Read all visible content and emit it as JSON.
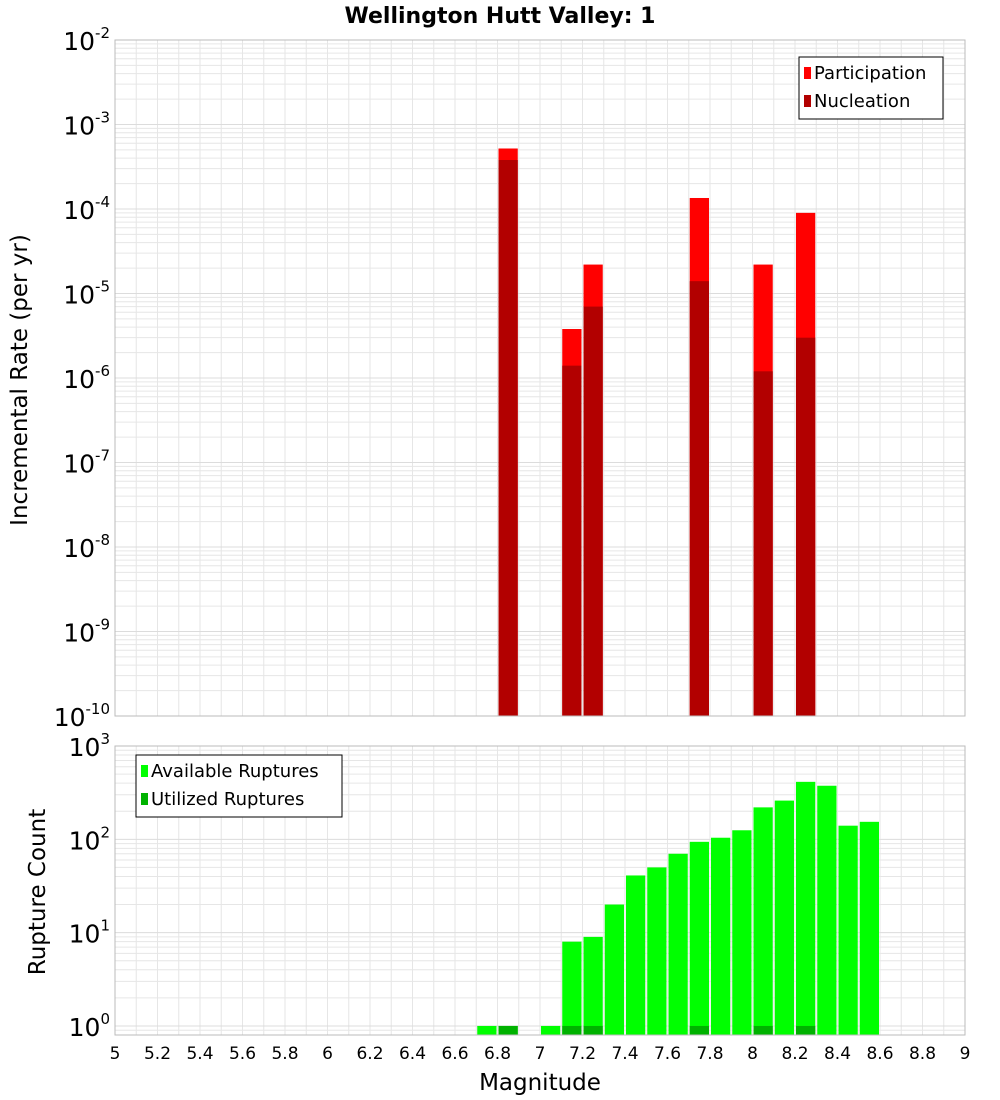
{
  "title": "Wellington Hutt Valley: 1",
  "xlabel": "Magnitude",
  "colors": {
    "participation": "#ff0000",
    "nucleation": "#b20000",
    "available": "#00ff00",
    "utilized": "#00b200",
    "grid": "#e6e6e6",
    "frame": "#bbbbbb"
  },
  "chart_data": [
    {
      "type": "bar",
      "panel": "rates",
      "ylabel": "Incremental Rate (per yr)",
      "yscale": "log",
      "ylim": [
        1e-10,
        0.01
      ],
      "xlim": [
        5,
        9
      ],
      "bin_width": 0.1,
      "grid": true,
      "legend_position": "top-right",
      "y_ticks": [
        {
          "base": "10",
          "exp": "-10",
          "value": 1e-10
        },
        {
          "base": "10",
          "exp": "-9",
          "value": 1e-09
        },
        {
          "base": "10",
          "exp": "-8",
          "value": 1e-08
        },
        {
          "base": "10",
          "exp": "-7",
          "value": 1e-07
        },
        {
          "base": "10",
          "exp": "-6",
          "value": 1e-06
        },
        {
          "base": "10",
          "exp": "-5",
          "value": 1e-05
        },
        {
          "base": "10",
          "exp": "-4",
          "value": 0.0001
        },
        {
          "base": "10",
          "exp": "-3",
          "value": 0.001
        },
        {
          "base": "10",
          "exp": "-2",
          "value": 0.01
        }
      ],
      "series": [
        {
          "name": "Participation",
          "color_key": "participation",
          "x": [
            6.85,
            7.15,
            7.25,
            7.75,
            8.05,
            8.25
          ],
          "values": [
            0.00052,
            3.8e-06,
            2.2e-05,
            0.000135,
            2.2e-05,
            9e-05
          ]
        },
        {
          "name": "Nucleation",
          "color_key": "nucleation",
          "x": [
            6.85,
            7.15,
            7.25,
            7.75,
            8.05,
            8.25
          ],
          "values": [
            0.00038,
            1.4e-06,
            7e-06,
            1.4e-05,
            1.2e-06,
            3e-06
          ]
        }
      ]
    },
    {
      "type": "bar",
      "panel": "counts",
      "ylabel": "Rupture Count",
      "yscale": "log",
      "ylim": [
        0.8,
        1000
      ],
      "xlim": [
        5,
        9
      ],
      "bin_width": 0.1,
      "grid": true,
      "legend_position": "top-left",
      "y_ticks": [
        {
          "base": "10",
          "exp": "0",
          "value": 1
        },
        {
          "base": "10",
          "exp": "1",
          "value": 10
        },
        {
          "base": "10",
          "exp": "2",
          "value": 100
        },
        {
          "base": "10",
          "exp": "3",
          "value": 1000
        }
      ],
      "series": [
        {
          "name": "Available Ruptures",
          "color_key": "available",
          "x": [
            6.75,
            6.85,
            7.05,
            7.15,
            7.25,
            7.35,
            7.45,
            7.55,
            7.65,
            7.75,
            7.85,
            7.95,
            8.05,
            8.15,
            8.25,
            8.35,
            8.45,
            8.55
          ],
          "values": [
            1,
            1,
            1,
            8,
            9,
            20,
            41,
            50,
            70,
            94,
            104,
            125,
            220,
            260,
            413,
            375,
            140,
            154
          ]
        },
        {
          "name": "Utilized Ruptures",
          "color_key": "utilized",
          "x": [
            6.85,
            7.15,
            7.25,
            7.75,
            8.05,
            8.25
          ],
          "values": [
            1,
            1,
            1,
            1,
            1,
            1
          ]
        }
      ]
    }
  ],
  "x_ticks": [
    "5",
    "5.2",
    "5.4",
    "5.6",
    "5.8",
    "6",
    "6.2",
    "6.4",
    "6.6",
    "6.8",
    "7",
    "7.2",
    "7.4",
    "7.6",
    "7.8",
    "8",
    "8.2",
    "8.4",
    "8.6",
    "8.8",
    "9"
  ]
}
